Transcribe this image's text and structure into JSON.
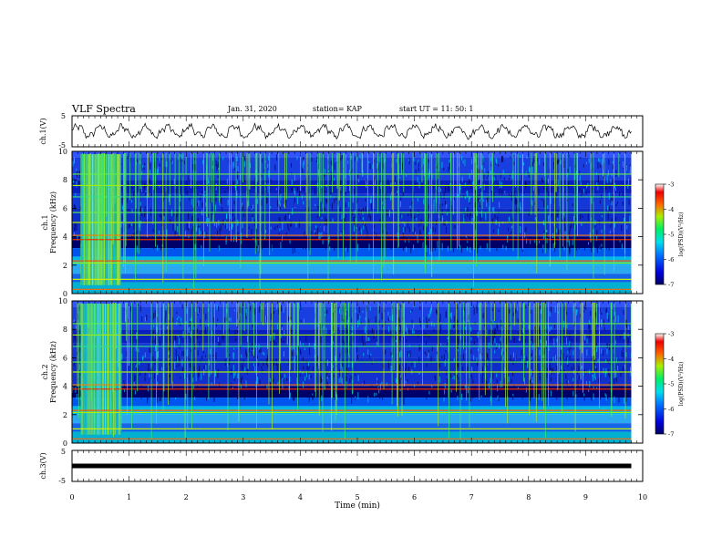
{
  "header": {
    "title": "VLF Spectra",
    "date": "Jan. 31, 2020",
    "station": "station= KAP",
    "start": "start UT =  11: 50: 1"
  },
  "chart_data": [
    {
      "type": "line",
      "name": "ch1-waveform",
      "ylabel": "ch.1(V)",
      "ylim": [
        -5,
        5
      ],
      "yticks": [
        "5",
        "-5"
      ],
      "xlim": [
        0,
        10
      ],
      "xlabel": "Time (min)"
    },
    {
      "type": "heatmap",
      "name": "ch1-spectrogram",
      "ylabel_top": "ch.1",
      "ylabel": "Frequency (kHz)",
      "ylim": [
        0,
        10
      ],
      "yticks": [
        "0",
        "2",
        "4",
        "6",
        "8",
        "10"
      ],
      "xlim": [
        0,
        10
      ],
      "data_end_min": 9.8,
      "burst_interval_min": [
        0.15,
        0.85
      ],
      "colorbar_label": "log(PSD)(V²/Hz)",
      "colorbar_range": [
        -7,
        -3
      ],
      "colorbar_ticks": [
        "-3",
        "-4",
        "-5",
        "-6",
        "-7"
      ]
    },
    {
      "type": "heatmap",
      "name": "ch2-spectrogram",
      "ylabel_top": "ch.2",
      "ylabel": "Frequency (kHz)",
      "ylim": [
        0,
        10
      ],
      "yticks": [
        "0",
        "2",
        "4",
        "6",
        "8",
        "10"
      ],
      "xlim": [
        0,
        10
      ],
      "data_end_min": 9.8,
      "burst_interval_min": [
        0.15,
        0.85
      ],
      "colorbar_label": "log(PSD)(V²/Hz)",
      "colorbar_range": [
        -7,
        -3
      ],
      "colorbar_ticks": [
        "-3",
        "-4",
        "-5",
        "-6",
        "-7"
      ]
    },
    {
      "type": "line",
      "name": "ch3-waveform",
      "ylabel": "ch.3(V)",
      "ylim": [
        -5,
        5
      ],
      "yticks": [
        "5",
        "-5"
      ],
      "constant_value": 0,
      "xlim": [
        0,
        10
      ],
      "xticks": [
        "0",
        "1",
        "2",
        "3",
        "4",
        "5",
        "6",
        "7",
        "8",
        "9",
        "10"
      ],
      "xlabel": "Time (min)"
    }
  ]
}
